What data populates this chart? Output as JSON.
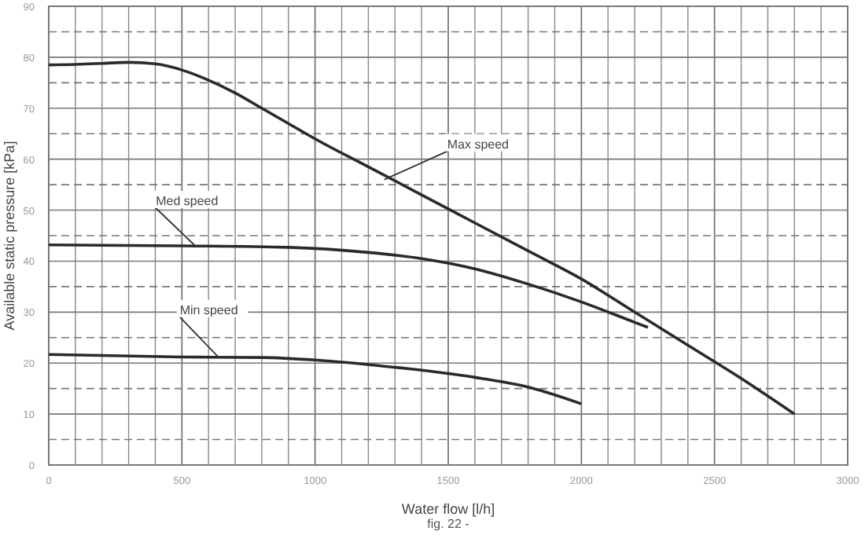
{
  "chart_data": {
    "type": "line",
    "xlabel": "Water flow [l/h]",
    "ylabel": "Available static pressure [kPa]",
    "xlim": [
      0,
      3000
    ],
    "ylim": [
      0,
      90
    ],
    "xticks": [
      0,
      {
        "value": 100,
        "label": null
      },
      {
        "value": 200,
        "label": null
      },
      {
        "value": 300,
        "label": null
      },
      {
        "value": 400,
        "label": null
      },
      500,
      {
        "value": 600,
        "label": null
      },
      {
        "value": 700,
        "label": null
      },
      {
        "value": 800,
        "label": null
      },
      {
        "value": 900,
        "label": null
      },
      1000,
      {
        "value": 1100,
        "label": null
      },
      {
        "value": 1200,
        "label": null
      },
      {
        "value": 1300,
        "label": null
      },
      {
        "value": 1400,
        "label": null
      },
      1500,
      {
        "value": 1600,
        "label": null
      },
      {
        "value": 1700,
        "label": null
      },
      {
        "value": 1800,
        "label": null
      },
      {
        "value": 1900,
        "label": null
      },
      2000,
      {
        "value": 2100,
        "label": null
      },
      {
        "value": 2200,
        "label": null
      },
      {
        "value": 2300,
        "label": null
      },
      {
        "value": 2400,
        "label": null
      },
      2500,
      {
        "value": 2600,
        "label": null
      },
      {
        "value": 2700,
        "label": null
      },
      {
        "value": 2800,
        "label": null
      },
      {
        "value": 2900,
        "label": null
      },
      3000
    ],
    "yticks": [
      0,
      {
        "value": 5,
        "label": null
      },
      10,
      {
        "value": 15,
        "label": null
      },
      20,
      {
        "value": 25,
        "label": null
      },
      30,
      {
        "value": 35,
        "label": null
      },
      40,
      {
        "value": 45,
        "label": null
      },
      50,
      {
        "value": 55,
        "label": null
      },
      60,
      {
        "value": 65,
        "label": null
      },
      70,
      {
        "value": 75,
        "label": null
      },
      80,
      {
        "value": 85,
        "label": null
      },
      90
    ],
    "grid": true,
    "marker": "none",
    "line_style": "solid",
    "series": [
      {
        "color": "#2a2a2a",
        "x": [
          0,
          100,
          200,
          300,
          400,
          500,
          600,
          700,
          800,
          900,
          1000,
          1200,
          1400,
          1600,
          1800,
          2000,
          2200,
          2400,
          2600,
          2800
        ],
        "values": [
          78.5,
          78.6,
          78.8,
          79,
          78.7,
          77.5,
          75.5,
          73,
          70,
          67,
          64,
          58.5,
          53,
          47.5,
          42,
          36.5,
          30,
          23.5,
          17,
          10
        ]
      },
      {
        "color": "#2a2a2a",
        "x": [
          0,
          500,
          900,
          1200,
          1400,
          1600,
          1800,
          2000,
          2200,
          2250
        ],
        "values": [
          43.2,
          43,
          42.7,
          41.7,
          40.5,
          38.5,
          35.5,
          32,
          28,
          27
        ]
      },
      {
        "color": "#2a2a2a",
        "x": [
          0,
          500,
          800,
          1000,
          1200,
          1400,
          1600,
          1800,
          2000
        ],
        "values": [
          21.7,
          21.2,
          21.1,
          20.6,
          19.7,
          18.6,
          17.2,
          15.3,
          12
        ]
      }
    ],
    "annotations": [
      {
        "text": "Max speed",
        "x": 1260,
        "y": 56
      },
      {
        "text": "Med speed",
        "x": 550,
        "y": 43
      },
      {
        "text": "Min speed",
        "x": 640,
        "y": 21
      },
      "fig. 22 -"
    ]
  }
}
